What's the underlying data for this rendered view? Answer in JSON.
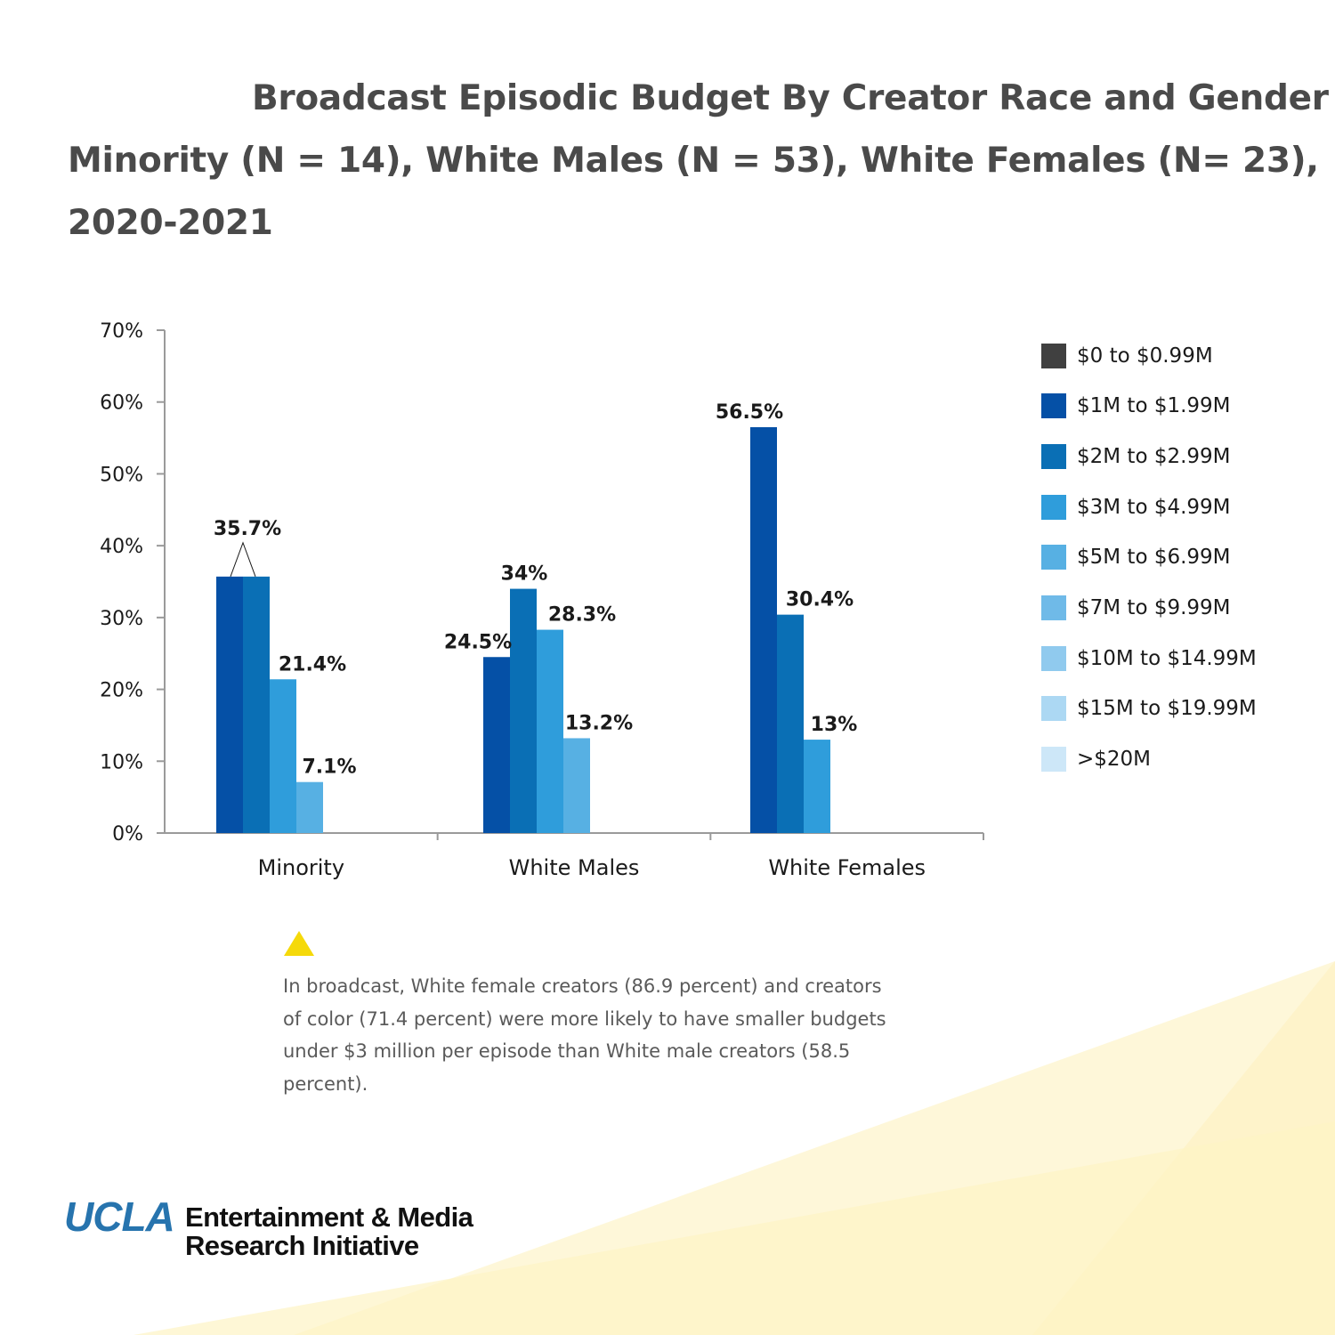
{
  "title_lines": [
    "Broadcast Episodic Budget By Creator Race and Gender",
    "Minority (N = 14), White Males (N = 53), White Females (N= 23),",
    "2020-2021"
  ],
  "chart_data": {
    "type": "bar",
    "categories": [
      "Minority",
      "White Males",
      "White Females"
    ],
    "series": [
      {
        "name": "$0 to $0.99M",
        "color": "#404040",
        "values": [
          0,
          0,
          0
        ]
      },
      {
        "name": "$1M to $1.99M",
        "color": "#0550a6",
        "values": [
          35.7,
          24.5,
          56.5
        ]
      },
      {
        "name": "$2M to $2.99M",
        "color": "#0a6fb5",
        "values": [
          35.7,
          34,
          30.4
        ]
      },
      {
        "name": "$3M to $4.99M",
        "color": "#2f9ddb",
        "values": [
          21.4,
          28.3,
          13
        ]
      },
      {
        "name": "$5M to $6.99M",
        "color": "#57b0e3",
        "values": [
          7.1,
          13.2,
          0
        ]
      },
      {
        "name": "$7M to $9.99M",
        "color": "#6fbae8",
        "values": [
          0,
          0,
          0
        ]
      },
      {
        "name": "$10M to $14.99M",
        "color": "#90caee",
        "values": [
          0,
          0,
          0
        ]
      },
      {
        "name": "$15M to $19.99M",
        "color": "#acd8f3",
        "values": [
          0,
          0,
          0
        ]
      },
      {
        "name": ">$20M",
        "color": "#cde7f8",
        "values": [
          0,
          0,
          0
        ]
      }
    ],
    "ylim": [
      0,
      70
    ],
    "yticks": [
      "0%",
      "10%",
      "20%",
      "30%",
      "40%",
      "50%",
      "60%",
      "70%"
    ],
    "data_labels": [
      {
        "category": "Minority",
        "series": "$1M to $1.99M",
        "text": "35.7%",
        "shared_with": "$2M to $2.99M"
      },
      {
        "category": "Minority",
        "series": "$3M to $4.99M",
        "text": "21.4%"
      },
      {
        "category": "Minority",
        "series": "$5M to $6.99M",
        "text": "7.1%"
      },
      {
        "category": "White Males",
        "series": "$1M to $1.99M",
        "text": "24.5%"
      },
      {
        "category": "White Males",
        "series": "$2M to $2.99M",
        "text": "34%"
      },
      {
        "category": "White Males",
        "series": "$3M to $4.99M",
        "text": "28.3%"
      },
      {
        "category": "White Males",
        "series": "$5M to $6.99M",
        "text": "13.2%"
      },
      {
        "category": "White Females",
        "series": "$1M to $1.99M",
        "text": "56.5%"
      },
      {
        "category": "White Females",
        "series": "$2M to $2.99M",
        "text": "30.4%"
      },
      {
        "category": "White Females",
        "series": "$3M to $4.99M",
        "text": "13%"
      }
    ],
    "legend_position": "right",
    "grid": false
  },
  "note": {
    "icon": "triangle-icon",
    "icon_color": "#f5d90a",
    "text": "In broadcast, White female creators (86.9 percent) and creators of color (71.4 percent) were more likely to have smaller budgets under $3 million per episode than White male creators (58.5 percent)."
  },
  "logo": {
    "mark": "UCLA",
    "line1": "Entertainment & Media",
    "line2": "Research Initiative",
    "mark_color": "#2774ae"
  },
  "background_accent": "#fdf3c4"
}
